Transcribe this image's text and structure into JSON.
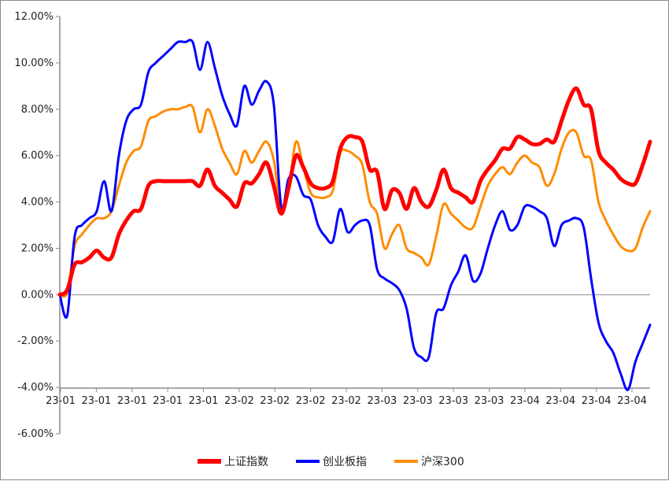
{
  "chart_data": {
    "type": "line",
    "title": "",
    "xlabel": "",
    "ylabel": "",
    "ylim": [
      -6,
      12
    ],
    "yticks": [
      12,
      10,
      8,
      6,
      4,
      2,
      0,
      -2,
      -4,
      -6
    ],
    "ytick_labels": [
      "12.00%",
      "10.00%",
      "8.00%",
      "6.00%",
      "4.00%",
      "2.00%",
      "0.00%",
      "-2.00%",
      "-4.00%",
      "-6.00%"
    ],
    "xtick_labels": [
      "23-01",
      "23-01",
      "23-01",
      "23-01",
      "23-01",
      "23-02",
      "23-02",
      "23-02",
      "23-02",
      "23-03",
      "23-03",
      "23-03",
      "23-03",
      "23-04",
      "23-04",
      "23-04",
      "23-04"
    ],
    "n_points": 81,
    "legend_position": "bottom",
    "series": [
      {
        "name": "上证指数",
        "color": "#ff0000",
        "values": [
          0.0,
          0.2,
          1.3,
          1.4,
          1.6,
          1.9,
          1.6,
          1.6,
          2.6,
          3.2,
          3.6,
          3.7,
          4.7,
          4.9,
          4.9,
          4.9,
          4.9,
          4.9,
          4.9,
          4.7,
          5.4,
          4.7,
          4.4,
          4.1,
          3.8,
          4.8,
          4.8,
          5.2,
          5.7,
          4.7,
          3.5,
          4.6,
          6.0,
          5.5,
          4.8,
          4.6,
          4.6,
          4.9,
          6.3,
          6.8,
          6.8,
          6.6,
          5.4,
          5.3,
          3.7,
          4.5,
          4.4,
          3.7,
          4.6,
          4.0,
          3.8,
          4.5,
          5.4,
          4.6,
          4.4,
          4.2,
          4.0,
          4.9,
          5.4,
          5.8,
          6.3,
          6.3,
          6.8,
          6.7,
          6.5,
          6.5,
          6.7,
          6.6,
          7.5,
          8.4,
          8.9,
          8.2,
          8.0,
          6.2,
          5.7,
          5.4,
          5.0,
          4.8,
          4.8,
          5.6,
          6.6
        ]
      },
      {
        "name": "创业板指",
        "color": "#0000ff",
        "values": [
          0.0,
          -0.9,
          2.5,
          3.0,
          3.3,
          3.6,
          4.9,
          3.6,
          6.0,
          7.5,
          8.0,
          8.2,
          9.6,
          10.0,
          10.3,
          10.6,
          10.9,
          10.9,
          10.9,
          9.7,
          10.9,
          9.8,
          8.6,
          7.8,
          7.3,
          9.0,
          8.2,
          8.8,
          9.2,
          8.2,
          3.8,
          5.0,
          5.1,
          4.3,
          4.1,
          3.0,
          2.5,
          2.3,
          3.7,
          2.7,
          3.0,
          3.2,
          3.0,
          1.1,
          0.7,
          0.5,
          0.2,
          -0.6,
          -2.3,
          -2.7,
          -2.7,
          -0.8,
          -0.6,
          0.4,
          1.0,
          1.7,
          0.6,
          0.9,
          2.0,
          3.0,
          3.6,
          2.8,
          3.0,
          3.8,
          3.8,
          3.6,
          3.3,
          2.1,
          3.0,
          3.2,
          3.3,
          2.9,
          0.7,
          -1.2,
          -2.0,
          -2.5,
          -3.4,
          -4.1,
          -2.9,
          -2.1,
          -1.3
        ]
      },
      {
        "name": "沪深300",
        "color": "#ff8c00",
        "values": [
          0.0,
          0.1,
          2.1,
          2.6,
          3.0,
          3.3,
          3.3,
          3.6,
          4.7,
          5.7,
          6.2,
          6.4,
          7.5,
          7.7,
          7.9,
          8.0,
          8.0,
          8.1,
          8.1,
          7.0,
          8.0,
          7.3,
          6.3,
          5.7,
          5.2,
          6.2,
          5.7,
          6.2,
          6.6,
          5.8,
          3.7,
          4.5,
          6.6,
          5.5,
          4.4,
          4.2,
          4.2,
          4.5,
          6.1,
          6.2,
          6.0,
          5.6,
          4.0,
          3.5,
          2.0,
          2.6,
          3.0,
          2.0,
          1.8,
          1.6,
          1.3,
          2.5,
          3.9,
          3.5,
          3.2,
          2.9,
          2.9,
          3.8,
          4.7,
          5.2,
          5.5,
          5.2,
          5.7,
          6.0,
          5.7,
          5.5,
          4.7,
          5.2,
          6.3,
          7.0,
          7.0,
          6.0,
          5.8,
          4.0,
          3.2,
          2.6,
          2.1,
          1.9,
          2.0,
          2.9,
          3.6
        ]
      }
    ]
  }
}
